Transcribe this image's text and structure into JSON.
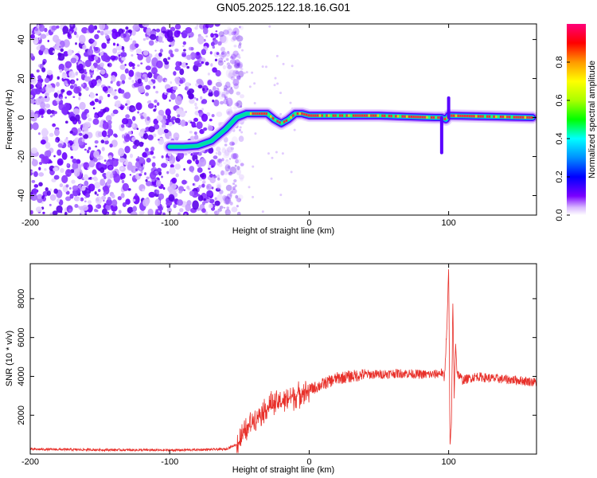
{
  "figure_title": "GN05.2025.122.18.16.G01",
  "chart_data": [
    {
      "type": "heatmap",
      "xlabel": "Height of straight line (km)",
      "ylabel": "Frequency (Hz)",
      "xlim": [
        -200,
        163
      ],
      "ylim": [
        -50,
        48
      ],
      "xticks": [
        -200,
        -100,
        0,
        100
      ],
      "yticks": [
        -40,
        -20,
        0,
        20,
        40
      ],
      "colorbar": {
        "label": "Normalized spectral amplitude",
        "range": [
          0,
          1
        ],
        "ticks": [
          "0.0",
          "0.2",
          "0.4",
          "0.6",
          "0.8"
        ]
      },
      "ridge": {
        "x": [
          -100,
          -90,
          -80,
          -70,
          -60,
          -52,
          -45,
          -40,
          -30,
          -25,
          -20,
          -15,
          -10,
          -5,
          0,
          50,
          90,
          95,
          98,
          100,
          160
        ],
        "y": [
          -15,
          -15,
          -14.5,
          -12,
          -6,
          0,
          2,
          2,
          2,
          -1,
          -3,
          -1,
          2,
          2,
          1,
          1,
          0,
          0,
          -1,
          1,
          0
        ]
      },
      "noise_region_x": [
        -200,
        -50
      ]
    },
    {
      "type": "line",
      "xlabel": "Height of straight line (km)",
      "ylabel": "SNR (10 * v/v)",
      "xlim": [
        -200,
        163
      ],
      "ylim": [
        0,
        9800
      ],
      "xticks": [
        -200,
        -100,
        0,
        100
      ],
      "yticks": [
        2000,
        4000,
        6000,
        8000
      ],
      "color": "#e8302a",
      "series": [
        {
          "x": [
            -200,
            -150,
            -100,
            -60,
            -52,
            -45,
            -40,
            -35,
            -30,
            -25,
            -20,
            -15,
            -10,
            -5,
            0,
            10,
            20,
            30,
            40,
            50,
            60,
            70,
            80,
            90,
            95,
            97,
            99,
            100,
            101,
            102,
            103,
            104,
            105,
            106,
            108,
            110,
            120,
            130,
            140,
            150,
            163
          ],
          "y": [
            250,
            220,
            200,
            250,
            500,
            1200,
            1800,
            2100,
            2400,
            2600,
            2700,
            2900,
            3000,
            3200,
            3300,
            3600,
            3900,
            4000,
            4100,
            4100,
            4150,
            4150,
            4100,
            4100,
            4200,
            3900,
            7000,
            9600,
            300,
            1500,
            7800,
            3000,
            5800,
            4200,
            4000,
            3800,
            4000,
            3900,
            3850,
            3800,
            3700
          ]
        }
      ]
    }
  ]
}
